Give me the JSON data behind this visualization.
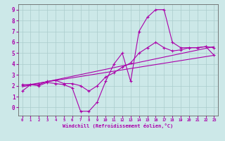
{
  "xlabel": "Windchill (Refroidissement éolien,°C)",
  "bg_color": "#cce8e8",
  "grid_color": "#aacccc",
  "line_color": "#aa00aa",
  "xlim": [
    -0.5,
    23.5
  ],
  "ylim": [
    -0.75,
    9.5
  ],
  "xticks": [
    0,
    1,
    2,
    3,
    4,
    5,
    6,
    7,
    8,
    9,
    10,
    11,
    12,
    13,
    14,
    15,
    16,
    17,
    18,
    19,
    20,
    21,
    22,
    23
  ],
  "yticks": [
    0,
    1,
    2,
    3,
    4,
    5,
    6,
    7,
    8,
    9
  ],
  "series1_x": [
    0,
    1,
    2,
    3,
    4,
    5,
    6,
    7,
    8,
    9,
    10,
    11,
    12,
    13,
    14,
    15,
    16,
    17,
    18,
    19,
    20,
    21,
    22,
    23
  ],
  "series1_y": [
    1.5,
    2.1,
    2.0,
    2.3,
    2.2,
    2.1,
    1.8,
    -0.35,
    -0.35,
    0.5,
    2.4,
    4.0,
    5.0,
    2.4,
    7.0,
    8.3,
    9.0,
    9.0,
    6.0,
    5.5,
    5.5,
    5.5,
    5.6,
    4.8
  ],
  "series2_x": [
    0,
    1,
    2,
    3,
    4,
    5,
    6,
    7,
    8,
    9,
    10,
    11,
    12,
    13,
    14,
    15,
    16,
    17,
    18,
    19,
    20,
    21,
    22,
    23
  ],
  "series2_y": [
    2.1,
    2.1,
    2.1,
    2.4,
    2.5,
    2.2,
    2.2,
    2.0,
    1.5,
    2.0,
    2.8,
    3.2,
    3.7,
    4.1,
    5.0,
    5.5,
    6.0,
    5.5,
    5.2,
    5.3,
    5.5,
    5.5,
    5.6,
    5.5
  ],
  "series3_x": [
    0,
    23
  ],
  "series3_y": [
    1.9,
    5.6
  ],
  "series4_x": [
    0,
    23
  ],
  "series4_y": [
    2.0,
    4.8
  ]
}
